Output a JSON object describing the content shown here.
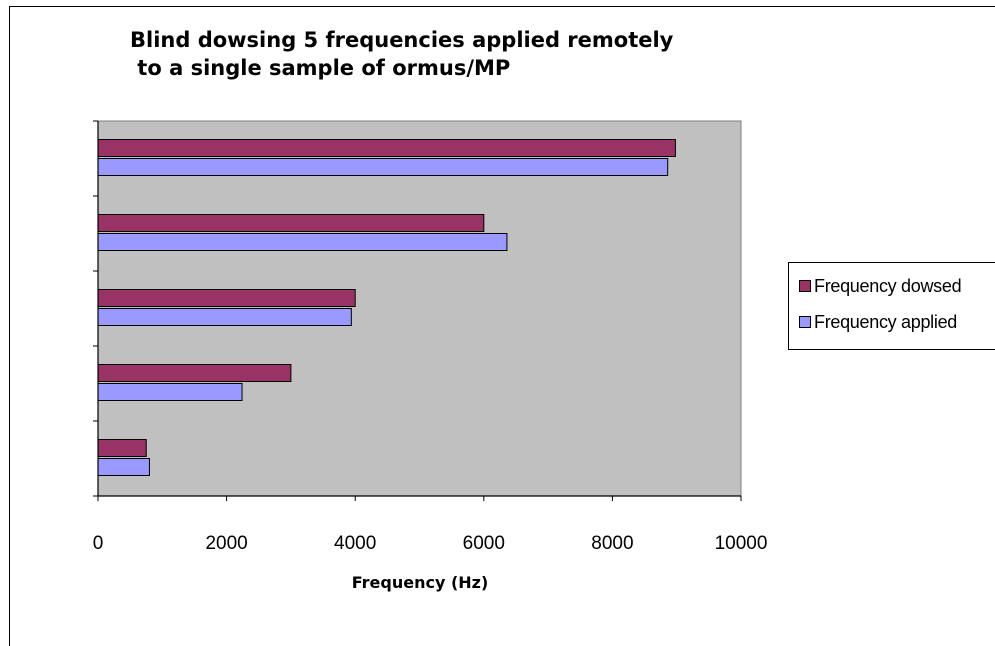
{
  "chart_data": {
    "type": "bar",
    "orientation": "horizontal",
    "title": "Blind dowsing 5 frequencies applied remotely\n to a single sample of ormus/MP",
    "xlabel": "Frequency (Hz)",
    "ylabel": "",
    "xlim": [
      0,
      10000
    ],
    "xticks": [
      "0",
      "2000",
      "4000",
      "6000",
      "8000",
      "10000"
    ],
    "categories": [
      "",
      "",
      "",
      "",
      ""
    ],
    "series": [
      {
        "name": "Frequency dowsed",
        "color": "#993366",
        "values": [
          8980,
          6000,
          4000,
          3000,
          750
        ]
      },
      {
        "name": "Frequency applied",
        "color": "#9999FF",
        "values": [
          8860,
          6360,
          3940,
          2240,
          800
        ]
      }
    ],
    "legend_position": "right",
    "plot_background": "#C0C0C0",
    "grid": false
  }
}
